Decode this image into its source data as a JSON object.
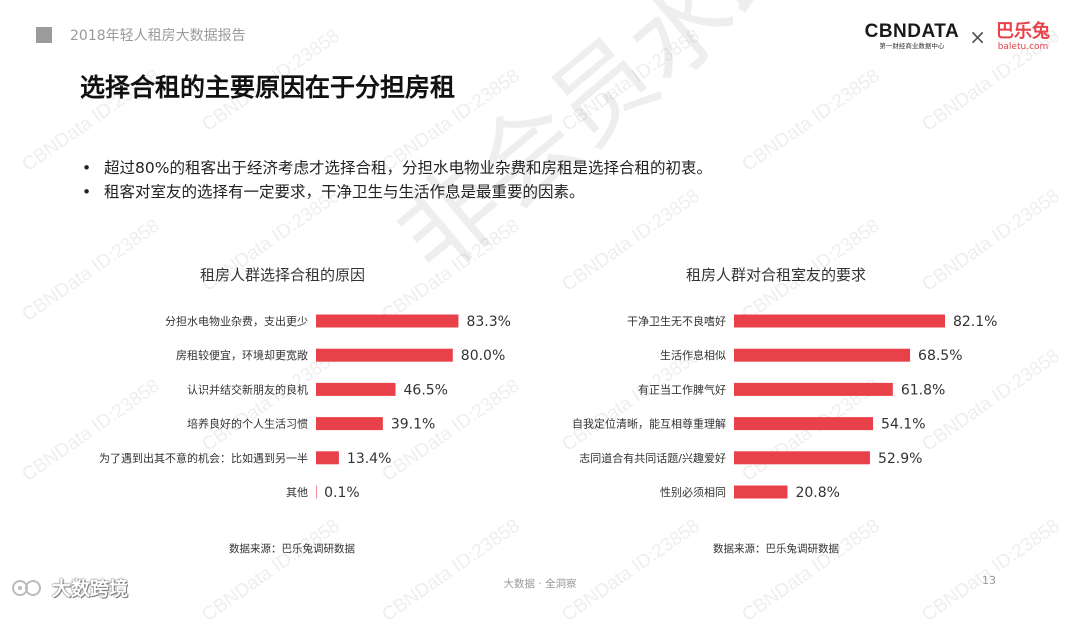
{
  "header": {
    "report_title": "2018年轻人租房大数据报告",
    "logo_cbn": "CBNDATA",
    "logo_cbn_sub": "第一财经商业数据中心",
    "logo_times": "×",
    "logo_baletu": "巴乐兔",
    "logo_baletu_sub": "baletu.com"
  },
  "slide": {
    "title": "选择合租的主要原因在于分担房租",
    "bullets": [
      "超过80%的租客出于经济考虑才选择合租，分担水电物业杂费和房租是选择合租的初衷。",
      "租客对室友的选择有一定要求，干净卫生与生活作息是最重要的因素。"
    ],
    "bullet_mark": "•"
  },
  "watermark": {
    "text": "CBNData ID:23858",
    "stamp": "非会员水印"
  },
  "footer": {
    "center": "大数据 · 全洞察",
    "page": "13",
    "brand": "大数跨境"
  },
  "colors": {
    "bar": "#e8414a",
    "text": "#222222",
    "muted": "#999999"
  },
  "chart_data": [
    {
      "type": "bar",
      "orientation": "horizontal",
      "title": "租房人群选择合租的原因",
      "categories": [
        "分担水电物业杂费，支出更少",
        "房租较便宜，环境却更宽敞",
        "认识并结交新朋友的良机",
        "培养良好的个人生活习惯",
        "为了遇到出其不意的机会：比如遇到另一半",
        "其他"
      ],
      "values": [
        83.3,
        80.0,
        46.5,
        39.1,
        13.4,
        0.1
      ],
      "labels": [
        "83.3%",
        "80.0%",
        "46.5%",
        "39.1%",
        "13.4%",
        "0.1%"
      ],
      "unit": "%",
      "xlim": [
        0,
        100
      ],
      "source": "数据来源：巴乐兔调研数据"
    },
    {
      "type": "bar",
      "orientation": "horizontal",
      "title": "租房人群对合租室友的要求",
      "categories": [
        "干净卫生无不良嗜好",
        "生活作息相似",
        "有正当工作脾气好",
        "自我定位清晰，能互相尊重理解",
        "志同道合有共同话题/兴趣爱好",
        "性别必须相同"
      ],
      "values": [
        82.1,
        68.5,
        61.8,
        54.1,
        52.9,
        20.8
      ],
      "labels": [
        "82.1%",
        "68.5%",
        "61.8%",
        "54.1%",
        "52.9%",
        "20.8%"
      ],
      "unit": "%",
      "xlim": [
        0,
        100
      ],
      "source": "数据来源：巴乐兔调研数据"
    }
  ]
}
